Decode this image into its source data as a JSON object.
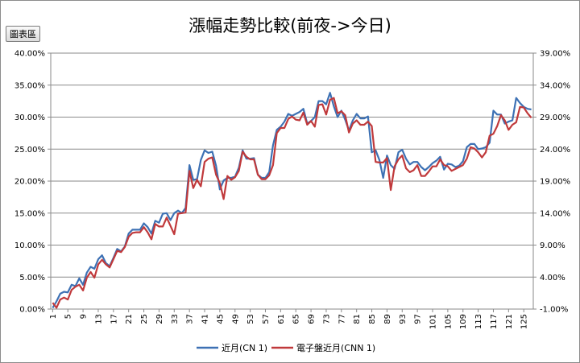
{
  "button": {
    "label": "圖表區"
  },
  "chart_data": {
    "type": "line",
    "title": "漲幅走勢比較(前夜->今日)",
    "ylim_left": [
      0,
      40
    ],
    "ylim_right": [
      -1,
      39
    ],
    "yticks_left": [
      "0.00%",
      "5.00%",
      "10.00%",
      "15.00%",
      "20.00%",
      "25.00%",
      "30.00%",
      "35.00%",
      "40.00%"
    ],
    "yticks_right": [
      "-1.00%",
      "4.00%",
      "9.00%",
      "14.00%",
      "19.00%",
      "24.00%",
      "29.00%",
      "34.00%",
      "39.00%"
    ],
    "xticks": [
      "1",
      "5",
      "9",
      "13",
      "17",
      "21",
      "25",
      "29",
      "33",
      "37",
      "41",
      "45",
      "49",
      "53",
      "57",
      "61",
      "65",
      "69",
      "73",
      "77",
      "81",
      "85",
      "89",
      "93",
      "97",
      "101",
      "105",
      "109",
      "113",
      "117",
      "121",
      "125"
    ],
    "grid": true,
    "legend_position": "bottom",
    "series": [
      {
        "name": "近月(CN 1)",
        "color": "#3d71b4",
        "axis": "left",
        "values": [
          0.2,
          1.2,
          2.4,
          2.7,
          2.6,
          3.8,
          3.6,
          4.8,
          3.8,
          5.7,
          6.6,
          6.3,
          7.8,
          8.4,
          7.2,
          6.7,
          8.0,
          9.4,
          9.0,
          9.8,
          11.8,
          12.4,
          12.4,
          12.4,
          13.4,
          12.8,
          11.8,
          13.8,
          13.5,
          14.9,
          15.0,
          13.9,
          15.0,
          15.4,
          15.0,
          15.8,
          22.5,
          20.2,
          20.3,
          23.3,
          24.8,
          24.4,
          24.6,
          22.4,
          18.7,
          20.1,
          20.5,
          20.5,
          20.7,
          22.1,
          24.8,
          23.5,
          23.5,
          23.6,
          21.0,
          20.5,
          20.5,
          21.4,
          25.6,
          28.0,
          28.5,
          29.3,
          30.5,
          30.2,
          30.5,
          30.8,
          31.3,
          29.0,
          29.4,
          30.0,
          32.5,
          32.5,
          32.0,
          33.8,
          31.7,
          30.0,
          31.0,
          29.6,
          27.9,
          29.5,
          30.5,
          29.8,
          29.8,
          30.1,
          24.5,
          24.8,
          23.3,
          20.5,
          24.0,
          22.5,
          21.9,
          24.5,
          24.9,
          23.5,
          22.6,
          23.0,
          23.0,
          22.2,
          21.7,
          22.2,
          22.8,
          23.2,
          23.8,
          21.8,
          22.7,
          22.6,
          22.2,
          22.4,
          23.1,
          25.3,
          25.8,
          25.8,
          25.0,
          25.1,
          25.3,
          26.0,
          31.0,
          30.4,
          30.4,
          29.0,
          29.3,
          29.5,
          33.0,
          32.2,
          31.6,
          31.3,
          31.2
        ]
      },
      {
        "name": "電子盤近月(CNN 1)",
        "color": "#c0393b",
        "axis": "right",
        "values": [
          0.0,
          -0.8,
          0.5,
          0.8,
          0.5,
          2.0,
          2.5,
          2.8,
          1.9,
          3.9,
          4.8,
          3.9,
          6.0,
          6.7,
          6.0,
          5.5,
          6.8,
          8.1,
          7.9,
          8.7,
          10.3,
          10.9,
          11.0,
          11.0,
          11.8,
          11.0,
          9.9,
          12.3,
          11.9,
          11.9,
          13.3,
          12.0,
          10.7,
          13.9,
          14.0,
          14.1,
          20.6,
          17.9,
          19.2,
          18.2,
          22.0,
          22.5,
          22.7,
          20.0,
          18.7,
          16.2,
          19.8,
          19.2,
          19.6,
          20.6,
          23.6,
          22.8,
          22.4,
          22.4,
          20.0,
          19.3,
          19.3,
          19.9,
          21.5,
          26.5,
          27.3,
          27.3,
          28.7,
          29.1,
          28.6,
          28.5,
          29.7,
          27.8,
          28.4,
          27.5,
          30.9,
          31.0,
          29.4,
          31.7,
          32.0,
          29.6,
          29.9,
          29.3,
          26.6,
          28.0,
          28.5,
          27.8,
          27.8,
          28.3,
          27.6,
          22.0,
          21.9,
          21.9,
          22.6,
          17.6,
          21.3,
          22.4,
          23.0,
          21.0,
          20.4,
          20.7,
          21.5,
          19.8,
          19.8,
          20.5,
          21.3,
          21.3,
          22.4,
          21.5,
          21.3,
          20.6,
          20.9,
          21.2,
          21.5,
          22.5,
          24.3,
          24.1,
          23.5,
          22.7,
          23.5,
          26.1,
          26.4,
          27.6,
          29.3,
          28.5,
          27.0,
          27.8,
          28.2,
          30.6,
          30.5,
          29.6,
          28.9
        ]
      }
    ]
  }
}
